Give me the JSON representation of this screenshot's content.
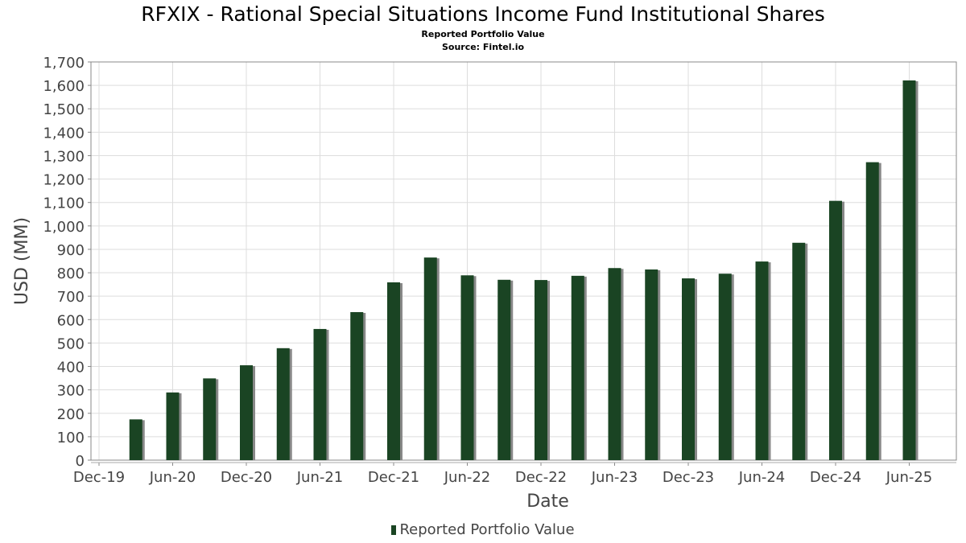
{
  "chart_data": {
    "type": "bar",
    "title": "RFXIX - Rational Special Situations Income Fund Institutional Shares",
    "subtitle": "Reported Portfolio Value",
    "source": "Source: Fintel.io",
    "xlabel": "Date",
    "ylabel": "USD (MM)",
    "ylim": [
      0,
      1700
    ],
    "yticks": [
      "0",
      "100",
      "200",
      "300",
      "400",
      "500",
      "600",
      "700",
      "800",
      "900",
      "1,000",
      "1,100",
      "1,200",
      "1,300",
      "1,400",
      "1,500",
      "1,600",
      "1,700"
    ],
    "xticks": [
      "Dec-19",
      "Jun-20",
      "Dec-20",
      "Jun-21",
      "Dec-21",
      "Jun-22",
      "Dec-22",
      "Jun-23",
      "Dec-23",
      "Jun-24",
      "Dec-24",
      "Jun-25"
    ],
    "grid": true,
    "legend": "bottom",
    "series": [
      {
        "name": "Reported Portfolio Value",
        "color": "#1a4423",
        "categories": [
          "Mar-20",
          "Jun-20",
          "Sep-20",
          "Dec-20",
          "Mar-21",
          "Jun-21",
          "Sep-21",
          "Dec-21",
          "Mar-22",
          "Jun-22",
          "Sep-22",
          "Dec-22",
          "Mar-23",
          "Jun-23",
          "Sep-23",
          "Dec-23",
          "Mar-24",
          "Jun-24",
          "Sep-24",
          "Dec-24",
          "Mar-25",
          "Jun-25"
        ],
        "values": [
          174,
          289,
          349,
          405,
          478,
          560,
          632,
          759,
          865,
          789,
          770,
          769,
          787,
          820,
          814,
          776,
          796,
          848,
          928,
          1107,
          1272,
          1621
        ]
      }
    ]
  }
}
